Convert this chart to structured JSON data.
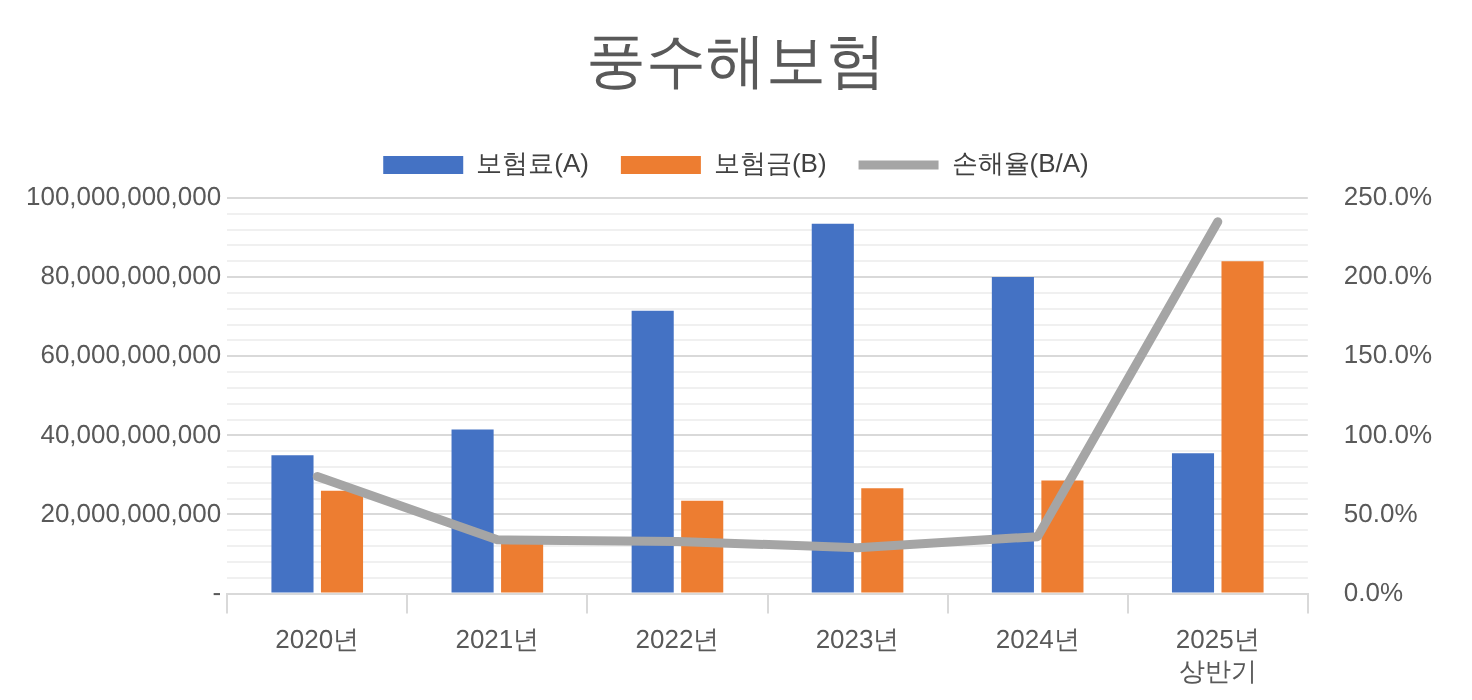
{
  "chart_data": {
    "type": "bar",
    "title": "풍수해보험",
    "categories": [
      "2020년",
      "2021년",
      "2022년",
      "2023년",
      "2024년",
      "2025년\n상반기"
    ],
    "series": [
      {
        "name": "보험료(A)",
        "color": "#4472c4",
        "values": [
          35000000000,
          41500000000,
          71500000000,
          93500000000,
          80000000000,
          35500000000
        ]
      },
      {
        "name": "보험금(B)",
        "color": "#ed7d31",
        "values": [
          26000000000,
          14000000000,
          23500000000,
          26600000000,
          28600000000,
          84000000000
        ]
      },
      {
        "name": "손해율(B/A)",
        "type": "line",
        "axis": "y2",
        "color": "#a5a5a5",
        "marker": "none",
        "values": [
          74,
          34,
          33,
          29,
          36,
          235
        ]
      }
    ],
    "ylim": [
      0,
      100000000000
    ],
    "yticks": [
      {
        "value": 0,
        "label": "-"
      },
      {
        "value": 4000000000,
        "label": null
      },
      {
        "value": 8000000000,
        "label": null
      },
      {
        "value": 12000000000,
        "label": null
      },
      {
        "value": 16000000000,
        "label": null
      },
      {
        "value": 20000000000,
        "label": "20,000,000,000"
      },
      {
        "value": 24000000000,
        "label": null
      },
      {
        "value": 28000000000,
        "label": null
      },
      {
        "value": 32000000000,
        "label": null
      },
      {
        "value": 36000000000,
        "label": null
      },
      {
        "value": 40000000000,
        "label": "40,000,000,000"
      },
      {
        "value": 44000000000,
        "label": null
      },
      {
        "value": 48000000000,
        "label": null
      },
      {
        "value": 52000000000,
        "label": null
      },
      {
        "value": 56000000000,
        "label": null
      },
      {
        "value": 60000000000,
        "label": "60,000,000,000"
      },
      {
        "value": 64000000000,
        "label": null
      },
      {
        "value": 68000000000,
        "label": null
      },
      {
        "value": 72000000000,
        "label": null
      },
      {
        "value": 76000000000,
        "label": null
      },
      {
        "value": 80000000000,
        "label": "80,000,000,000"
      },
      {
        "value": 84000000000,
        "label": null
      },
      {
        "value": 88000000000,
        "label": null
      },
      {
        "value": 92000000000,
        "label": null
      },
      {
        "value": 96000000000,
        "label": null
      },
      {
        "value": 100000000000,
        "label": "100,000,000,000"
      }
    ],
    "y2lim": [
      0,
      250
    ],
    "y2ticks": [
      {
        "value": 0,
        "label": "0.0%"
      },
      {
        "value": 50,
        "label": "50.0%"
      },
      {
        "value": 100,
        "label": "100.0%"
      },
      {
        "value": 150,
        "label": "150.0%"
      },
      {
        "value": 200,
        "label": "200.0%"
      },
      {
        "value": 250,
        "label": "250.0%"
      }
    ],
    "grid": "y",
    "legend": "top"
  }
}
